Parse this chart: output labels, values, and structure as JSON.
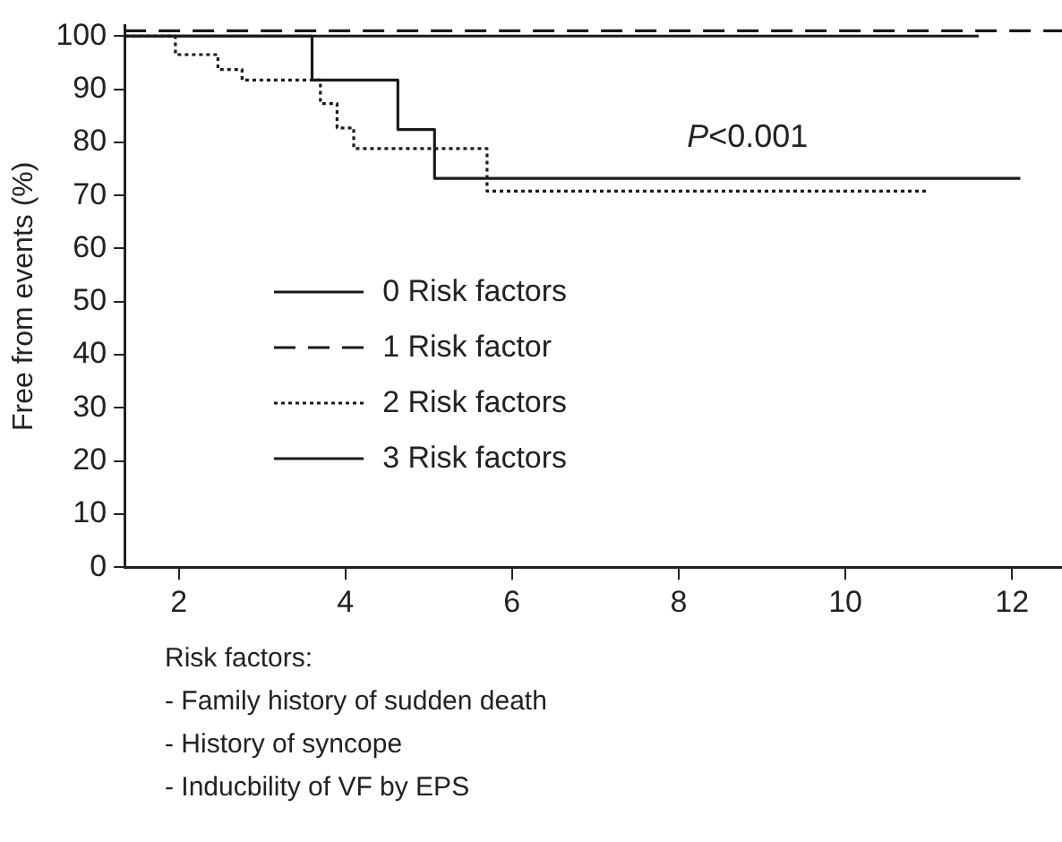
{
  "chart_data": {
    "type": "step",
    "ylabel": "Free from events (%)",
    "xlim": [
      1.35,
      12.6
    ],
    "xticks": [
      2,
      4,
      6,
      8,
      10,
      12
    ],
    "ylim": [
      0,
      102
    ],
    "yticks": [
      0,
      10,
      20,
      30,
      40,
      50,
      60,
      70,
      80,
      90,
      100
    ],
    "grid": false,
    "legend": "left",
    "marker": "none",
    "series": [
      {
        "name": "0 Risk factors",
        "color": "#1a1a1a",
        "line_style": "solid",
        "x": [
          1.35,
          11.6
        ],
        "values": [
          100,
          100
        ]
      },
      {
        "name": "1 Risk factor",
        "color": "#1a1a1a",
        "line_style": "dashed",
        "x": [
          1.35,
          12.6
        ],
        "values": [
          101,
          101
        ]
      },
      {
        "name": "2 Risk factors",
        "color": "#1a1a1a",
        "line_style": "dotted",
        "x": [
          1.35,
          1.96,
          2.47,
          2.76,
          3.7,
          3.9,
          4.1,
          5.7,
          11.0
        ],
        "values": [
          100,
          96.5,
          93.7,
          91.7,
          87.3,
          82.7,
          78.8,
          70.8,
          70.8
        ]
      },
      {
        "name": "3 Risk factors",
        "color": "#1a1a1a",
        "line_style": "solid",
        "x": [
          1.35,
          3.6,
          4.63,
          5.07,
          12.1
        ],
        "values": [
          100,
          91.7,
          82.4,
          73.2,
          73.2
        ]
      }
    ],
    "annotations": [
      "P<0.001",
      "Risk factors:",
      "- Family history of sudden death",
      "- History of syncope",
      "- Inducbility of VF by EPS"
    ]
  }
}
